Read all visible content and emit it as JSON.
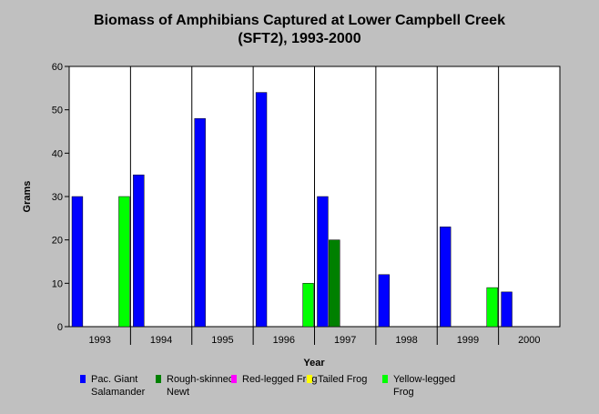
{
  "chart_data": {
    "type": "bar",
    "title_lines": [
      "Biomass of Amphibians Captured at Lower Campbell Creek",
      "(SFT2), 1993-2000"
    ],
    "xlabel": "Year",
    "ylabel": "Grams",
    "ylim": [
      0,
      60
    ],
    "yticks": [
      0,
      10,
      20,
      30,
      40,
      50,
      60
    ],
    "grid": "vertical category separators",
    "legend_placement": "bottom",
    "categories": [
      "1993",
      "1994",
      "1995",
      "1996",
      "1997",
      "1998",
      "1999",
      "2000"
    ],
    "series": [
      {
        "name": "Pac. Giant Salamander",
        "color": "#0000ff",
        "values": [
          30,
          35,
          48,
          54,
          30,
          12,
          23,
          8
        ]
      },
      {
        "name": "Rough-skinned Newt",
        "color": "#008000",
        "values": [
          0,
          0,
          0,
          0,
          20,
          0,
          0,
          0
        ]
      },
      {
        "name": "Red-legged Frog",
        "color": "#ff00ff",
        "values": [
          0,
          0,
          0,
          0,
          0,
          0,
          0,
          0
        ]
      },
      {
        "name": "Tailed Frog",
        "color": "#ffff00",
        "values": [
          0,
          0,
          0,
          0,
          0,
          0,
          0,
          0
        ]
      },
      {
        "name": "Yellow-legged Frog",
        "color": "#00ff00",
        "values": [
          30,
          0,
          0,
          10,
          0,
          0,
          9,
          0
        ]
      }
    ],
    "plot_background": "#ffffff"
  }
}
